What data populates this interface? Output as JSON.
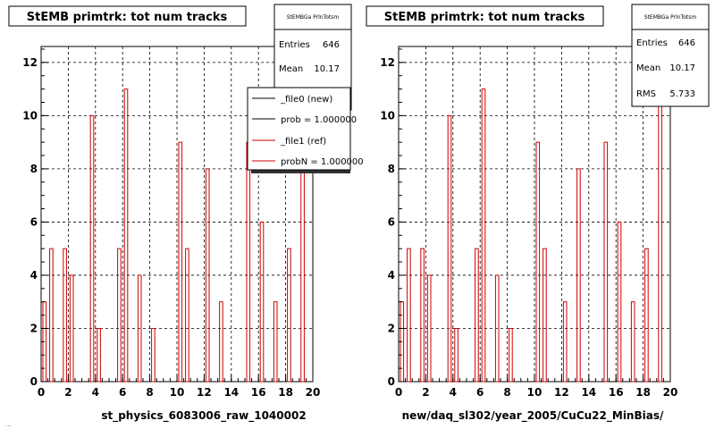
{
  "window": {
    "status_fragment": "..."
  },
  "chart_data": [
    {
      "type": "bar",
      "title": "StEMB primtrk: tot num tracks",
      "xlabel": "st_physics_6083006_raw_1040002",
      "ylabel": "",
      "xlim": [
        0,
        20
      ],
      "ylim": [
        0,
        12.6
      ],
      "x_ticks": [
        "0",
        "2",
        "4",
        "6",
        "8",
        "10",
        "12",
        "14",
        "16",
        "18",
        "20"
      ],
      "y_ticks": [
        "0",
        "2",
        "4",
        "6",
        "8",
        "10",
        "12"
      ],
      "grid": true,
      "bin_edges": [
        0.0,
        0.5,
        1.0,
        1.5,
        2.0,
        2.5,
        3.0,
        3.5,
        4.0,
        4.5,
        5.0,
        5.5,
        6.0,
        6.5,
        7.0,
        7.5,
        8.0,
        8.5,
        9.0,
        9.5,
        10.0,
        10.5,
        11.0,
        11.5,
        12.0,
        12.5,
        13.0,
        13.5,
        14.0,
        14.5,
        15.0,
        15.5,
        16.0,
        16.5,
        17.0,
        17.5,
        18.0,
        18.5,
        19.0,
        19.5,
        20.0
      ],
      "series": [
        {
          "name": "_file1 (ref)",
          "values": [
            3,
            5,
            0,
            5,
            4,
            0,
            0,
            10,
            2,
            0,
            0,
            5,
            11,
            0,
            4,
            0,
            2,
            0,
            0,
            0,
            9,
            5,
            0,
            0,
            8,
            0,
            3,
            0,
            0,
            0,
            9,
            0,
            6,
            0,
            3,
            0,
            5,
            0,
            12,
            0
          ],
          "color": "#cc0000"
        }
      ],
      "stats": {
        "title": "StEMBGa PrlnTotsm",
        "rows": [
          {
            "label": "Entries",
            "value": "646"
          },
          {
            "label": "Mean",
            "value": "10.17"
          }
        ]
      },
      "legend": {
        "position": "top-right",
        "entries": [
          {
            "label": "_file0 (new)",
            "color": "#000000"
          },
          {
            "label": "prob = 1.000000",
            "color": "#000000"
          },
          {
            "label": "_file1 (ref)",
            "color": "#cc0000"
          },
          {
            "label": "probN = 1.000000",
            "color": "#cc0000"
          }
        ]
      }
    },
    {
      "type": "bar",
      "title": "StEMB primtrk: tot num tracks",
      "xlabel": "new/daq_sl302/year_2005/CuCu22_MinBias/",
      "ylabel": "",
      "xlim": [
        0,
        20
      ],
      "ylim": [
        0,
        12.6
      ],
      "x_ticks": [
        "0",
        "2",
        "4",
        "6",
        "8",
        "10",
        "12",
        "14",
        "16",
        "18",
        "20"
      ],
      "y_ticks": [
        "0",
        "2",
        "4",
        "6",
        "8",
        "10",
        "12"
      ],
      "grid": true,
      "bin_edges": [
        0.0,
        0.5,
        1.0,
        1.5,
        2.0,
        2.5,
        3.0,
        3.5,
        4.0,
        4.5,
        5.0,
        5.5,
        6.0,
        6.5,
        7.0,
        7.5,
        8.0,
        8.5,
        9.0,
        9.5,
        10.0,
        10.5,
        11.0,
        11.5,
        12.0,
        12.5,
        13.0,
        13.5,
        14.0,
        14.5,
        15.0,
        15.5,
        16.0,
        16.5,
        17.0,
        17.5,
        18.0,
        18.5,
        19.0,
        19.5,
        20.0
      ],
      "series": [
        {
          "name": "",
          "values": [
            3,
            5,
            0,
            5,
            4,
            0,
            0,
            10,
            2,
            0,
            0,
            5,
            11,
            0,
            4,
            0,
            2,
            0,
            0,
            0,
            9,
            5,
            0,
            0,
            3,
            0,
            8,
            0,
            0,
            0,
            9,
            0,
            6,
            0,
            3,
            0,
            5,
            0,
            12,
            0
          ],
          "color": "#cc0000"
        }
      ],
      "stats": {
        "title": "StEMBGa PrlnTotsm",
        "rows": [
          {
            "label": "Entries",
            "value": "646"
          },
          {
            "label": "Mean",
            "value": "10.17"
          },
          {
            "label": "RMS",
            "value": "5.733"
          }
        ]
      }
    }
  ]
}
